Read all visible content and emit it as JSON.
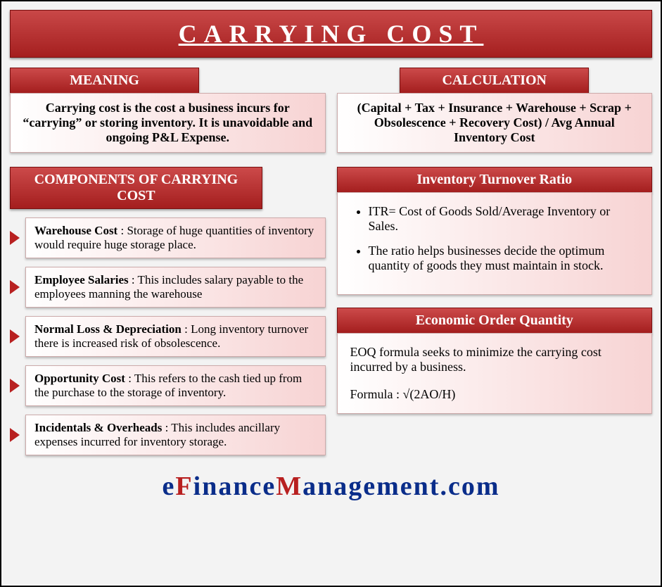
{
  "title": "CARRYING COST",
  "meaning": {
    "header": "MEANING",
    "text": "Carrying cost is the cost a business incurs for “carrying” or storing inventory. It is unavoidable and ongoing P&L Expense."
  },
  "calculation": {
    "header": "CALCULATION",
    "text": "(Capital + Tax + Insurance + Warehouse + Scrap + Obsolescence + Recovery Cost) / Avg Annual Inventory Cost"
  },
  "components": {
    "header": "COMPONENTS OF CARRYING COST",
    "items": [
      {
        "label": "Warehouse Cost",
        "desc": " : Storage of huge quantities of inventory would require huge storage place."
      },
      {
        "label": "Employee Salaries",
        "desc": " : This includes salary payable to the employees manning the warehouse"
      },
      {
        "label": "Normal Loss & Depreciation",
        "desc": " : Long inventory turnover there is increased risk of obsolescence."
      },
      {
        "label": "Opportunity Cost",
        "desc": " : This refers to the cash tied up from the purchase to the storage of inventory."
      },
      {
        "label": "Incidentals & Overheads",
        "desc": " : This includes ancillary expenses incurred for inventory storage."
      }
    ]
  },
  "itr": {
    "header": "Inventory Turnover Ratio",
    "bullet1": "ITR= Cost of Goods Sold/Average Inventory or Sales.",
    "bullet2": "The ratio helps businesses decide the optimum quantity of goods they must maintain in stock."
  },
  "eoq": {
    "header": "Economic Order Quantity",
    "line1": "EOQ formula seeks to minimize the carrying cost incurred by a business.",
    "line2": "Formula : √(2AO/H)"
  },
  "footer": {
    "parts": [
      "e",
      "F",
      "i",
      "n",
      "a",
      "n",
      "c",
      "e",
      "M",
      "a",
      "n",
      "a",
      "g",
      "e",
      "m",
      "e",
      "n",
      "t",
      ".",
      "c",
      "o",
      "m"
    ],
    "red_indices": [
      1,
      8
    ]
  },
  "colors": {
    "header_gradient_top": "#cc4a4a",
    "header_gradient_bottom": "#a41e1e",
    "box_gradient_right": "#f7d3d3",
    "arrow": "#b82020",
    "logo_blue": "#0a2d8a",
    "logo_red": "#b82020",
    "canvas_bg": "#f3f3f3"
  }
}
